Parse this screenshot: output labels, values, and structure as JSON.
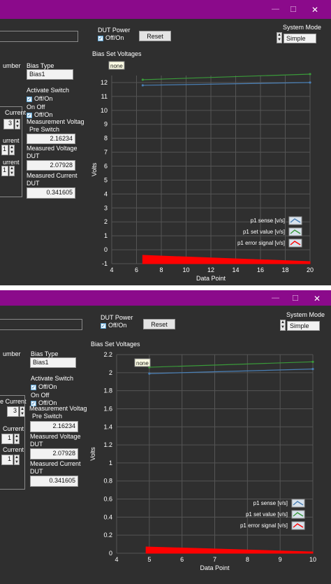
{
  "windows": [
    {
      "dut_power": {
        "title": "DUT Power",
        "toggle_label": "Off/On"
      },
      "reset_label": "Reset",
      "system_mode": {
        "title": "System Mode",
        "value": "Simple"
      },
      "left": {
        "label_number": "umber",
        "bias_type_label": "Bias Type",
        "bias_type_value": "Bias1",
        "activate_switch_label": "Activate Switch",
        "activate_off_on": "Off/On",
        "on_off_label": "On Off",
        "on_off_toggle": "Off/On",
        "current_label_1": "Current",
        "spin1_value": "3",
        "current_label_2": "urrent",
        "spin2_value": "1",
        "current_label_3": "urrent",
        "spin3_value": "1",
        "meas_voltage_pre_label": "Measurement Voltag",
        "pre_switch_label": "Pre Switch",
        "pre_switch_value": "2.16234",
        "meas_voltage_dut_label": "Measured Voltage",
        "dut_label_1": "DUT",
        "dut_voltage_value": "2.07928",
        "meas_current_label": "Measured Current",
        "dut_label_2": "DUT",
        "dut_current_value": "0.341605"
      },
      "chart_data": {
        "type": "line",
        "title": "Bias Set Voltages",
        "xlabel": "Data Point",
        "ylabel": "Volts",
        "xlim": [
          4,
          20
        ],
        "ylim": [
          -1,
          12.5
        ],
        "xticks": [
          4,
          6,
          8,
          10,
          12,
          14,
          16,
          18,
          20
        ],
        "yticks": [
          -1,
          0,
          1,
          2,
          3,
          4,
          5,
          6,
          7,
          8,
          9,
          10,
          11,
          12
        ],
        "grid": true,
        "legend_placement": "bottom-right",
        "tooltip": "none",
        "series": [
          {
            "name": "p1 sense [v/s]",
            "color": "#4a7fb5",
            "x": [
              6.5,
              20
            ],
            "y": [
              11.8,
              12.0
            ]
          },
          {
            "name": "p1 set value [v/s]",
            "color": "#3a9a3a",
            "x": [
              6.5,
              20
            ],
            "y": [
              12.2,
              12.6
            ]
          },
          {
            "name": "p1 error signal [v/s]",
            "color": "#ff0000",
            "x": [
              6.5,
              20
            ],
            "y": [
              -0.4,
              -0.85
            ],
            "fill_to": -1
          }
        ]
      }
    },
    {
      "dut_power": {
        "title": "DUT Power",
        "toggle_label": "Off/On"
      },
      "reset_label": "Reset",
      "system_mode": {
        "title": "System Mode",
        "value": "Simple"
      },
      "left": {
        "label_number": "umber",
        "bias_type_label": "Bias Type",
        "bias_type_value": "Bias1",
        "activate_switch_label": "Activate Switch",
        "activate_off_on": "Off/On",
        "on_off_label": "On Off",
        "on_off_toggle": "Off/On",
        "current_label_1": "e Current",
        "spin1_value": "3",
        "current_label_2": "Current",
        "spin2_value": "1",
        "current_label_3": "Current",
        "spin3_value": "1",
        "meas_voltage_pre_label": "Measurement Voltag",
        "pre_switch_label": "Pre Switch",
        "pre_switch_value": "2.16234",
        "meas_voltage_dut_label": "Measured Voltage",
        "dut_label_1": "DUT",
        "dut_voltage_value": "2.07928",
        "meas_current_label": "Measured Current",
        "dut_label_2": "DUT",
        "dut_current_value": "0.341605"
      },
      "chart_data": {
        "type": "line",
        "title": "Bias Set Voltages",
        "xlabel": "Data Point",
        "ylabel": "Volts",
        "xlim": [
          4,
          10
        ],
        "ylim": [
          0,
          2.2
        ],
        "xticks": [
          4,
          5,
          6,
          7,
          8,
          9,
          10
        ],
        "yticks": [
          0,
          0.2,
          0.4,
          0.6,
          0.8,
          1,
          1.2,
          1.4,
          1.6,
          1.8,
          2,
          2.2
        ],
        "grid": true,
        "legend_placement": "bottom-right",
        "tooltip": "none",
        "series": [
          {
            "name": "p1 sense [v/s]",
            "color": "#4a7fb5",
            "x": [
              5,
              10
            ],
            "y": [
              1.99,
              2.04
            ]
          },
          {
            "name": "p1 set value [v/s]",
            "color": "#3a9a3a",
            "x": [
              5,
              10
            ],
            "y": [
              2.06,
              2.12
            ]
          },
          {
            "name": "p1 error signal [v/s]",
            "color": "#ff0000",
            "x": [
              4.9,
              10
            ],
            "y": [
              0.07,
              0.015
            ],
            "fill_to": 0
          }
        ]
      }
    }
  ]
}
